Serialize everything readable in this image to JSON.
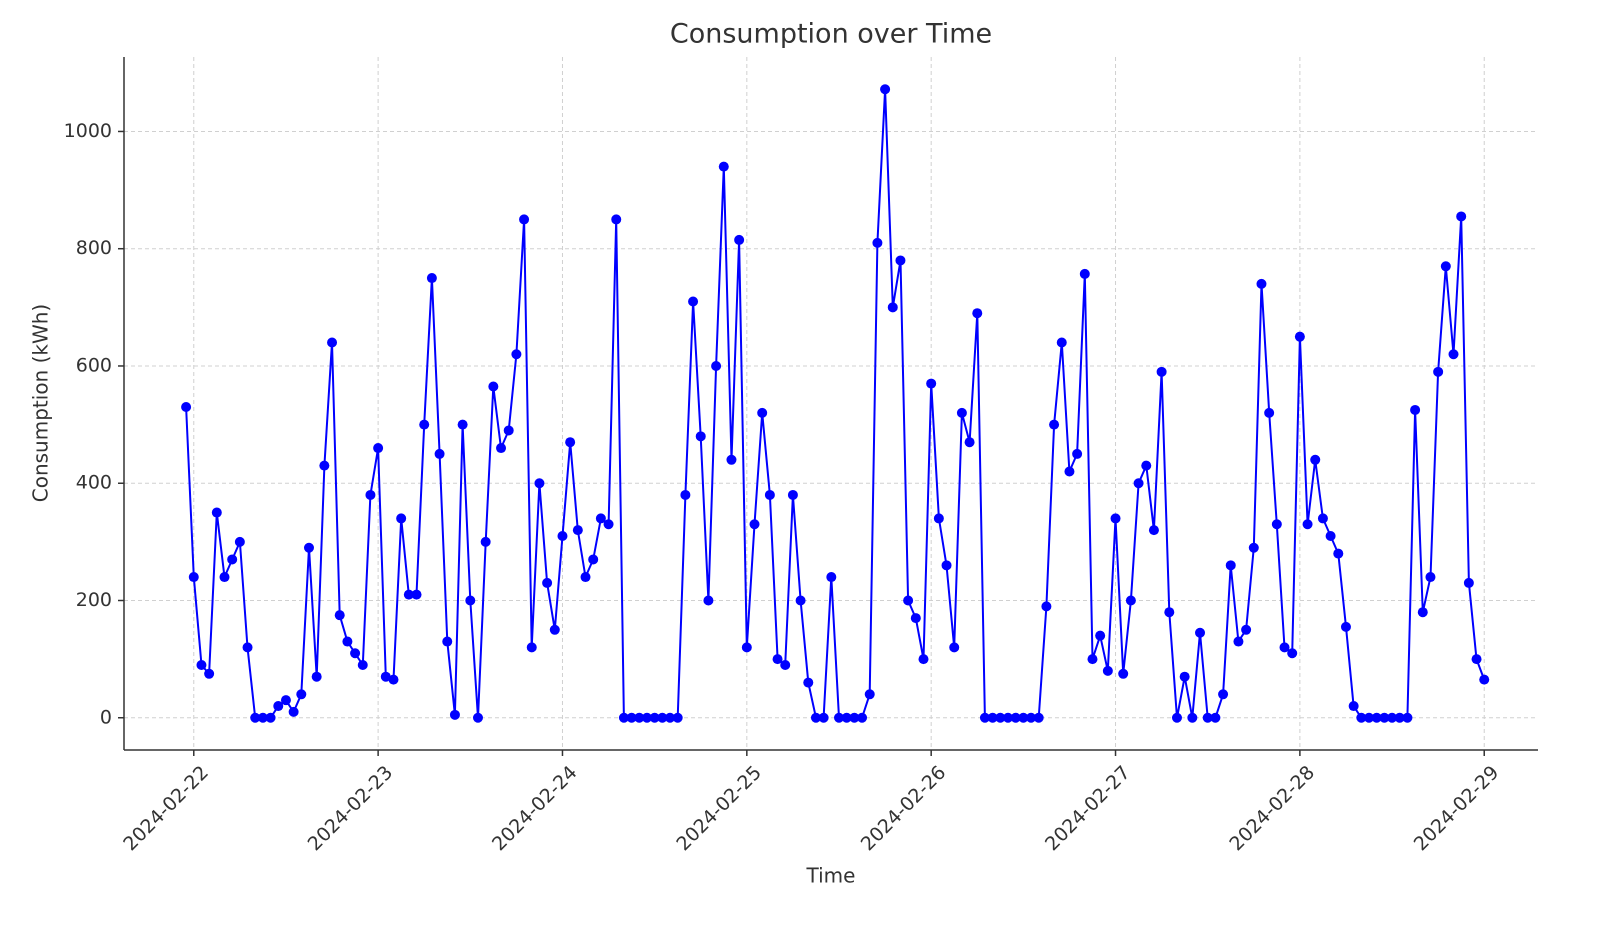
{
  "chart_data": {
    "type": "line",
    "title": "Consumption over Time",
    "x_label": "Time",
    "y_label": "Consumption (kWh)",
    "color": "#0000ff",
    "grid": true,
    "marker": "circle",
    "xlim": [
      "2024-02-21 14:55",
      "2024-02-29 07:00"
    ],
    "xticks": [
      "2024-02-22",
      "2024-02-23",
      "2024-02-24",
      "2024-02-25",
      "2024-02-26",
      "2024-02-27",
      "2024-02-28",
      "2024-02-29"
    ],
    "ylim": [
      -55,
      1127
    ],
    "yticks": [
      0,
      200,
      400,
      600,
      800,
      1000
    ],
    "x": [
      "2024-02-21 23:00",
      "2024-02-22 00:00",
      "2024-02-22 01:00",
      "2024-02-22 02:00",
      "2024-02-22 03:00",
      "2024-02-22 04:00",
      "2024-02-22 05:00",
      "2024-02-22 06:00",
      "2024-02-22 07:00",
      "2024-02-22 08:00",
      "2024-02-22 09:00",
      "2024-02-22 10:00",
      "2024-02-22 11:00",
      "2024-02-22 12:00",
      "2024-02-22 13:00",
      "2024-02-22 14:00",
      "2024-02-22 15:00",
      "2024-02-22 16:00",
      "2024-02-22 17:00",
      "2024-02-22 18:00",
      "2024-02-22 19:00",
      "2024-02-22 20:00",
      "2024-02-22 21:00",
      "2024-02-22 22:00",
      "2024-02-22 23:00",
      "2024-02-23 00:00",
      "2024-02-23 01:00",
      "2024-02-23 02:00",
      "2024-02-23 03:00",
      "2024-02-23 04:00",
      "2024-02-23 05:00",
      "2024-02-23 06:00",
      "2024-02-23 07:00",
      "2024-02-23 08:00",
      "2024-02-23 09:00",
      "2024-02-23 10:00",
      "2024-02-23 11:00",
      "2024-02-23 12:00",
      "2024-02-23 13:00",
      "2024-02-23 14:00",
      "2024-02-23 15:00",
      "2024-02-23 16:00",
      "2024-02-23 17:00",
      "2024-02-23 18:00",
      "2024-02-23 19:00",
      "2024-02-23 20:00",
      "2024-02-23 21:00",
      "2024-02-23 22:00",
      "2024-02-23 23:00",
      "2024-02-24 00:00",
      "2024-02-24 01:00",
      "2024-02-24 02:00",
      "2024-02-24 03:00",
      "2024-02-24 04:00",
      "2024-02-24 05:00",
      "2024-02-24 06:00",
      "2024-02-24 07:00",
      "2024-02-24 08:00",
      "2024-02-24 09:00",
      "2024-02-24 10:00",
      "2024-02-24 11:00",
      "2024-02-24 12:00",
      "2024-02-24 13:00",
      "2024-02-24 14:00",
      "2024-02-24 15:00",
      "2024-02-24 16:00",
      "2024-02-24 17:00",
      "2024-02-24 18:00",
      "2024-02-24 19:00",
      "2024-02-24 20:00",
      "2024-02-24 21:00",
      "2024-02-24 22:00",
      "2024-02-24 23:00",
      "2024-02-25 00:00",
      "2024-02-25 01:00",
      "2024-02-25 02:00",
      "2024-02-25 03:00",
      "2024-02-25 04:00",
      "2024-02-25 05:00",
      "2024-02-25 06:00",
      "2024-02-25 07:00",
      "2024-02-25 08:00",
      "2024-02-25 09:00",
      "2024-02-25 10:00",
      "2024-02-25 11:00",
      "2024-02-25 12:00",
      "2024-02-25 13:00",
      "2024-02-25 14:00",
      "2024-02-25 15:00",
      "2024-02-25 16:00",
      "2024-02-25 17:00",
      "2024-02-25 18:00",
      "2024-02-25 19:00",
      "2024-02-25 20:00",
      "2024-02-25 21:00",
      "2024-02-25 22:00",
      "2024-02-25 23:00",
      "2024-02-26 00:00",
      "2024-02-26 01:00",
      "2024-02-26 02:00",
      "2024-02-26 03:00",
      "2024-02-26 04:00",
      "2024-02-26 05:00",
      "2024-02-26 06:00",
      "2024-02-26 07:00",
      "2024-02-26 08:00",
      "2024-02-26 09:00",
      "2024-02-26 10:00",
      "2024-02-26 11:00",
      "2024-02-26 12:00",
      "2024-02-26 13:00",
      "2024-02-26 14:00",
      "2024-02-26 15:00",
      "2024-02-26 16:00",
      "2024-02-26 17:00",
      "2024-02-26 18:00",
      "2024-02-26 19:00",
      "2024-02-26 20:00",
      "2024-02-26 21:00",
      "2024-02-26 22:00",
      "2024-02-26 23:00",
      "2024-02-27 00:00",
      "2024-02-27 01:00",
      "2024-02-27 02:00",
      "2024-02-27 03:00",
      "2024-02-27 04:00",
      "2024-02-27 05:00",
      "2024-02-27 06:00",
      "2024-02-27 07:00",
      "2024-02-27 08:00",
      "2024-02-27 09:00",
      "2024-02-27 10:00",
      "2024-02-27 11:00",
      "2024-02-27 12:00",
      "2024-02-27 13:00",
      "2024-02-27 14:00",
      "2024-02-27 15:00",
      "2024-02-27 16:00",
      "2024-02-27 17:00",
      "2024-02-27 18:00",
      "2024-02-27 19:00",
      "2024-02-27 20:00",
      "2024-02-27 21:00",
      "2024-02-27 22:00",
      "2024-02-27 23:00",
      "2024-02-28 00:00",
      "2024-02-28 01:00",
      "2024-02-28 02:00",
      "2024-02-28 03:00",
      "2024-02-28 04:00",
      "2024-02-28 05:00",
      "2024-02-28 06:00",
      "2024-02-28 07:00",
      "2024-02-28 08:00",
      "2024-02-28 09:00",
      "2024-02-28 10:00",
      "2024-02-28 11:00",
      "2024-02-28 12:00",
      "2024-02-28 13:00",
      "2024-02-28 14:00",
      "2024-02-28 15:00",
      "2024-02-28 16:00",
      "2024-02-28 17:00",
      "2024-02-28 18:00",
      "2024-02-28 19:00",
      "2024-02-28 20:00",
      "2024-02-28 21:00",
      "2024-02-28 22:00",
      "2024-02-28 23:00",
      "2024-02-29 00:00"
    ],
    "values": [
      530,
      240,
      90,
      75,
      350,
      240,
      270,
      300,
      120,
      0,
      0,
      0,
      20,
      30,
      10,
      40,
      290,
      70,
      430,
      640,
      175,
      130,
      110,
      90,
      380,
      460,
      70,
      65,
      340,
      210,
      210,
      500,
      750,
      450,
      130,
      5,
      500,
      200,
      0,
      300,
      565,
      460,
      490,
      620,
      850,
      120,
      400,
      230,
      150,
      310,
      470,
      320,
      240,
      270,
      340,
      330,
      850,
      0,
      0,
      0,
      0,
      0,
      0,
      0,
      0,
      380,
      710,
      480,
      200,
      600,
      940,
      440,
      815,
      120,
      330,
      520,
      380,
      100,
      90,
      380,
      200,
      60,
      0,
      0,
      240,
      0,
      0,
      0,
      0,
      40,
      810,
      1072,
      700,
      780,
      200,
      170,
      100,
      570,
      340,
      260,
      120,
      520,
      470,
      690,
      0,
      0,
      0,
      0,
      0,
      0,
      0,
      0,
      190,
      500,
      640,
      420,
      450,
      757,
      100,
      140,
      80,
      340,
      75,
      200,
      400,
      430,
      320,
      590,
      180,
      0,
      70,
      0,
      145,
      0,
      0,
      40,
      260,
      130,
      150,
      290,
      740,
      520,
      330,
      120,
      110,
      650,
      330,
      440,
      340,
      310,
      280,
      155,
      20,
      0,
      0,
      0,
      0,
      0,
      0,
      0,
      525,
      180,
      240,
      590,
      770,
      620,
      855,
      230,
      100,
      65
    ]
  }
}
